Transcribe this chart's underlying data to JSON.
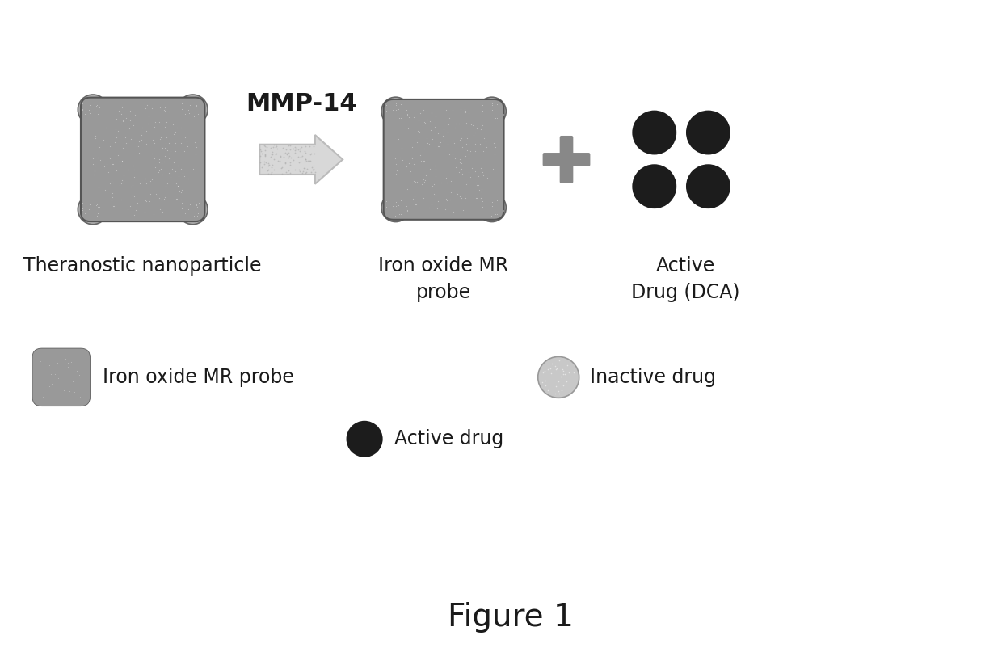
{
  "title": "Figure 1",
  "mmp14_label": "MMP-14",
  "nanoparticle_gray": "#999999",
  "nanoparticle_light": "#bbbbbb",
  "arm_gray": "#b0b0b0",
  "inactive_drug_color": "#c8c8c8",
  "active_drug_color": "#1c1c1c",
  "arrow_fill": "#d8d8d8",
  "arrow_edge": "#bbbbbb",
  "plus_color": "#888888",
  "label1": "Theranostic nanoparticle",
  "label2": "Iron oxide MR\nprobe",
  "label3": "Active\nDrug (DCA)",
  "legend_iron": "Iron oxide MR probe",
  "legend_inactive": "Inactive drug",
  "legend_active": "Active drug",
  "bg_color": "#ffffff",
  "text_color": "#1a1a1a",
  "label_fontsize": 17,
  "title_fontsize": 28,
  "mmp_fontsize": 22
}
